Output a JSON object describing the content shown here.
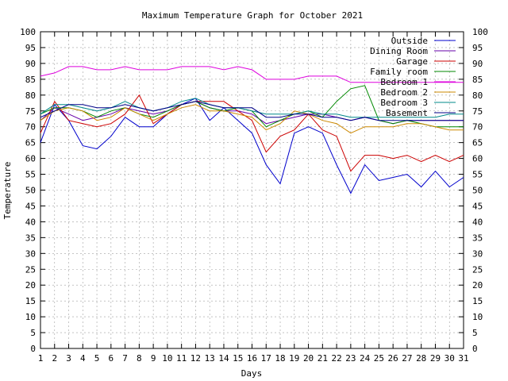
{
  "chart_data": {
    "type": "line",
    "title": "Maximum Temperature Graph for October 2021",
    "xlabel": "Days",
    "ylabel": "Temperature",
    "xlim": [
      1,
      31
    ],
    "ylim": [
      0,
      100
    ],
    "x_ticks": [
      1,
      2,
      3,
      4,
      5,
      6,
      7,
      8,
      9,
      10,
      11,
      12,
      13,
      14,
      15,
      16,
      17,
      18,
      19,
      20,
      21,
      22,
      23,
      24,
      25,
      26,
      27,
      28,
      29,
      30,
      31
    ],
    "y_ticks": [
      0,
      5,
      10,
      15,
      20,
      25,
      30,
      35,
      40,
      45,
      50,
      55,
      60,
      65,
      70,
      75,
      80,
      85,
      90,
      95,
      100
    ],
    "grid": true,
    "legend_position": "top-right",
    "x": [
      1,
      2,
      3,
      4,
      5,
      6,
      7,
      8,
      9,
      10,
      11,
      12,
      13,
      14,
      15,
      16,
      17,
      18,
      19,
      20,
      21,
      22,
      23,
      24,
      25,
      26,
      27,
      28,
      29,
      30,
      31
    ],
    "series": [
      {
        "name": "Outside",
        "color": "#0000cc",
        "values": [
          65,
          77,
          72,
          64,
          63,
          67,
          73,
          70,
          70,
          74,
          77,
          79,
          72,
          76,
          72,
          68,
          58,
          52,
          68,
          70,
          68,
          58,
          49,
          58,
          53,
          54,
          55,
          51,
          56,
          51,
          54
        ]
      },
      {
        "name": "Dining Room",
        "color": "#6600aa",
        "values": [
          72,
          76,
          74,
          72,
          73,
          74,
          76,
          75,
          74,
          75,
          77,
          78,
          76,
          75,
          75,
          74,
          71,
          72,
          73,
          74,
          74,
          73,
          72,
          73,
          72,
          71,
          72,
          72,
          72,
          72,
          72
        ]
      },
      {
        "name": "Garage",
        "color": "#cc0000",
        "values": [
          68,
          78,
          72,
          71,
          70,
          71,
          74,
          80,
          71,
          74,
          77,
          78,
          78,
          78,
          75,
          72,
          62,
          67,
          69,
          74,
          69,
          67,
          56,
          61,
          61,
          60,
          61,
          59,
          61,
          59,
          61
        ]
      },
      {
        "name": "Family room",
        "color": "#008800",
        "values": [
          74,
          76,
          76,
          75,
          73,
          75,
          76,
          74,
          73,
          75,
          77,
          78,
          76,
          75,
          76,
          75,
          70,
          72,
          74,
          75,
          73,
          78,
          82,
          83,
          72,
          71,
          72,
          71,
          70,
          70,
          70
        ]
      },
      {
        "name": "Bedroom 1",
        "color": "#dd00dd",
        "values": [
          86,
          87,
          89,
          89,
          88,
          88,
          89,
          88,
          88,
          88,
          89,
          89,
          89,
          88,
          89,
          88,
          85,
          85,
          85,
          86,
          86,
          86,
          84,
          84,
          84,
          84,
          84,
          84,
          84,
          84,
          84
        ]
      },
      {
        "name": "Bedroom 2",
        "color": "#cc8800",
        "values": [
          72,
          75,
          76,
          75,
          72,
          73,
          76,
          74,
          72,
          74,
          76,
          77,
          75,
          75,
          74,
          73,
          69,
          71,
          75,
          74,
          72,
          71,
          68,
          70,
          70,
          70,
          71,
          71,
          70,
          69,
          69
        ]
      },
      {
        "name": "Bedroom 3",
        "color": "#008888",
        "values": [
          74,
          77,
          77,
          76,
          75,
          76,
          78,
          76,
          75,
          76,
          78,
          79,
          77,
          76,
          76,
          75,
          74,
          74,
          74,
          75,
          74,
          74,
          73,
          73,
          73,
          73,
          73,
          73,
          73,
          74,
          74
        ]
      },
      {
        "name": "Basement",
        "color": "#000088",
        "values": [
          73,
          75,
          77,
          77,
          76,
          76,
          77,
          76,
          75,
          76,
          77,
          78,
          77,
          76,
          76,
          76,
          73,
          73,
          74,
          74,
          73,
          73,
          72,
          73,
          72,
          72,
          72,
          72,
          72,
          72,
          72
        ]
      }
    ]
  }
}
